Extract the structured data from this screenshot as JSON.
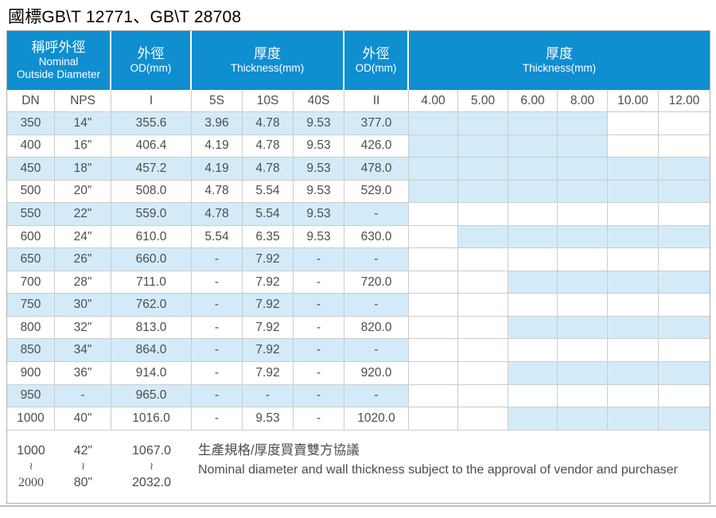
{
  "title": "國標GB\\T 12771、GB\\T 28708",
  "colors": {
    "header_blue": "#0f8ed0",
    "stripe_blue": "#d3ebf8",
    "border_gray": "#cccccc",
    "text_gray": "#4d4d4d"
  },
  "table": {
    "group_headers": [
      {
        "zh": "稱呼外徑",
        "en1": "Nominal",
        "en2": "Outside Diameter"
      },
      {
        "zh": "外徑",
        "en": "OD(mm)"
      },
      {
        "zh": "厚度",
        "en": "Thickness(mm)"
      },
      {
        "zh": "外徑",
        "en": "OD(mm)"
      },
      {
        "zh": "厚度",
        "en": "Thickness(mm)"
      }
    ],
    "sub_headers": [
      "DN",
      "NPS",
      "I",
      "5S",
      "10S",
      "40S",
      "II",
      "4.00",
      "5.00",
      "6.00",
      "8.00",
      "10.00",
      "12.00"
    ],
    "rows": [
      {
        "cells": [
          "350",
          "14\"",
          "355.6",
          "3.96",
          "4.78",
          "9.53",
          "377.0"
        ],
        "marks": [
          1,
          1,
          1,
          1,
          0,
          0
        ]
      },
      {
        "cells": [
          "400",
          "16\"",
          "406.4",
          "4.19",
          "4.78",
          "9.53",
          "426.0"
        ],
        "marks": [
          1,
          1,
          1,
          1,
          0,
          0
        ]
      },
      {
        "cells": [
          "450",
          "18\"",
          "457.2",
          "4.19",
          "4.78",
          "9.53",
          "478.0"
        ],
        "marks": [
          1,
          1,
          1,
          1,
          1,
          1
        ]
      },
      {
        "cells": [
          "500",
          "20\"",
          "508.0",
          "4.78",
          "5.54",
          "9.53",
          "529.0"
        ],
        "marks": [
          1,
          1,
          1,
          1,
          1,
          1
        ]
      },
      {
        "cells": [
          "550",
          "22\"",
          "559.0",
          "4.78",
          "5.54",
          "9.53",
          "-"
        ],
        "marks": [
          0,
          0,
          0,
          0,
          0,
          0
        ]
      },
      {
        "cells": [
          "600",
          "24\"",
          "610.0",
          "5.54",
          "6.35",
          "9.53",
          "630.0"
        ],
        "marks": [
          0,
          1,
          1,
          1,
          1,
          1
        ]
      },
      {
        "cells": [
          "650",
          "26\"",
          "660.0",
          "-",
          "7.92",
          "-",
          "-"
        ],
        "marks": [
          0,
          0,
          0,
          0,
          0,
          0
        ]
      },
      {
        "cells": [
          "700",
          "28\"",
          "711.0",
          "-",
          "7.92",
          "-",
          "720.0"
        ],
        "marks": [
          0,
          0,
          1,
          1,
          1,
          1
        ]
      },
      {
        "cells": [
          "750",
          "30\"",
          "762.0",
          "-",
          "7.92",
          "-",
          "-"
        ],
        "marks": [
          0,
          0,
          0,
          0,
          0,
          0
        ]
      },
      {
        "cells": [
          "800",
          "32\"",
          "813.0",
          "-",
          "7.92",
          "-",
          "820.0"
        ],
        "marks": [
          0,
          0,
          1,
          1,
          1,
          1
        ]
      },
      {
        "cells": [
          "850",
          "34\"",
          "864.0",
          "-",
          "7.92",
          "-",
          "-"
        ],
        "marks": [
          0,
          0,
          0,
          0,
          0,
          0
        ]
      },
      {
        "cells": [
          "900",
          "36\"",
          "914.0",
          "-",
          "7.92",
          "-",
          "920.0"
        ],
        "marks": [
          0,
          0,
          1,
          1,
          1,
          1
        ]
      },
      {
        "cells": [
          "950",
          "-",
          "965.0",
          "-",
          "-",
          "-",
          "-"
        ],
        "marks": [
          0,
          0,
          0,
          0,
          0,
          0
        ]
      },
      {
        "cells": [
          "1000",
          "40\"",
          "1016.0",
          "-",
          "9.53",
          "-",
          "1020.0"
        ],
        "marks": [
          0,
          0,
          1,
          1,
          1,
          1
        ]
      }
    ],
    "footer": {
      "dn": [
        "1000",
        "≀",
        "2000"
      ],
      "nps": [
        "42\"",
        "≀",
        "80\""
      ],
      "od": [
        "1067.0",
        "≀",
        "2032.0"
      ],
      "note_zh": "生產規格/厚度買賣雙方協議",
      "note_en": "Nominal diameter and wall thickness subject to the approval of vendor and purchaser"
    }
  }
}
